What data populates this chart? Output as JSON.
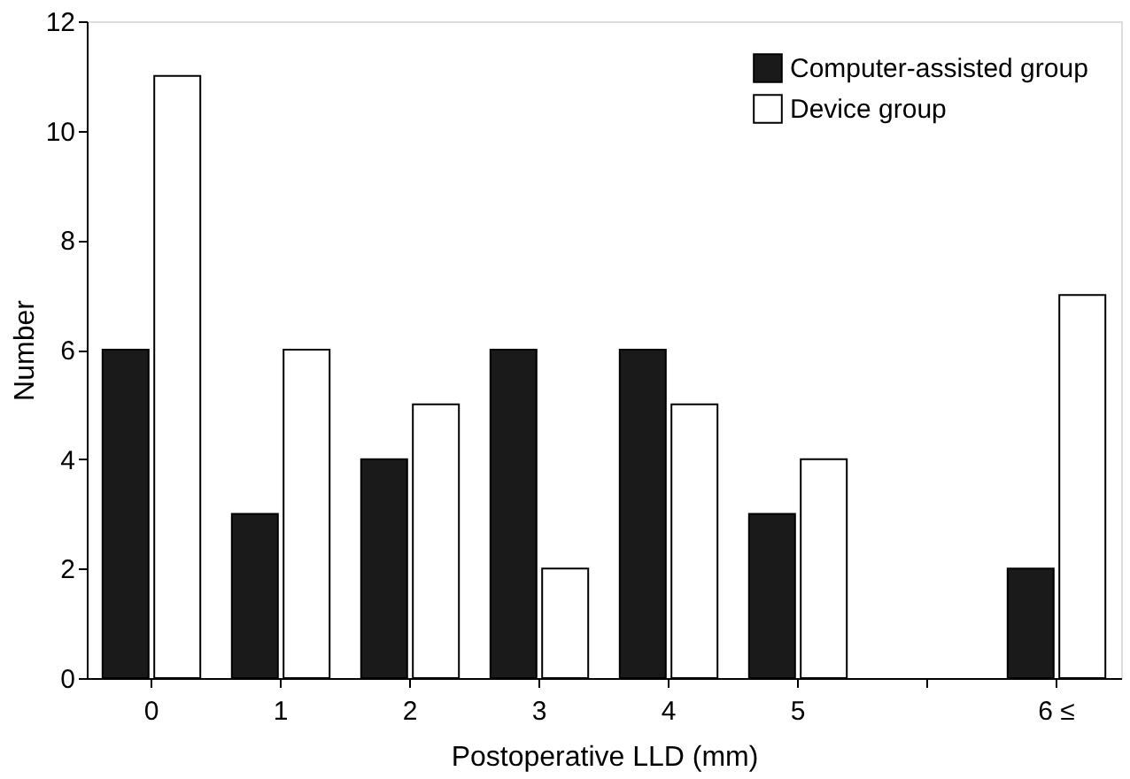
{
  "chart_data": {
    "type": "bar",
    "xlabel": "Postoperative LLD (mm)",
    "ylabel": "Number",
    "categories": [
      "0",
      "1",
      "2",
      "3",
      "4",
      "5",
      null,
      "6 ≤"
    ],
    "series": [
      {
        "name": "Computer-assisted group",
        "color": "#1a1a1a",
        "values": [
          6,
          3,
          4,
          6,
          6,
          3,
          null,
          2
        ]
      },
      {
        "name": "Device group",
        "color": "#ffffff",
        "values": [
          11,
          6,
          5,
          2,
          5,
          4,
          null,
          7
        ]
      }
    ],
    "ylim": [
      0,
      12
    ],
    "yticks": [
      0,
      2,
      4,
      6,
      8,
      10,
      12
    ],
    "grid": false,
    "legend": "top right"
  }
}
